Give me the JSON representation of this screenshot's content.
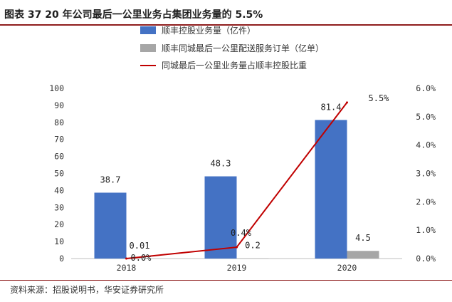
{
  "figure": {
    "title": "图表 37 20 年公司最后一公里业务占集团业务量的 5.5%",
    "source": "资料来源：招股说明书，华安证券研究所"
  },
  "colors": {
    "bar_primary": "#4472c4",
    "bar_secondary": "#a6a6a6",
    "line": "#c00000",
    "rule": "#8f1d1d"
  },
  "chart_data": {
    "type": "bar",
    "categories": [
      "2018",
      "2019",
      "2020"
    ],
    "series": [
      {
        "name": "顺丰控股业务量（亿件）",
        "type": "bar",
        "axis": "left",
        "values": [
          38.7,
          48.3,
          81.4
        ],
        "labels": [
          "38.7",
          "48.3",
          "81.4"
        ]
      },
      {
        "name": "顺丰同城最后一公里配送服务订单（亿单）",
        "type": "bar",
        "axis": "left",
        "values": [
          0.01,
          0.2,
          4.5
        ],
        "labels": [
          "0.01",
          "0.2",
          "4.5"
        ]
      },
      {
        "name": "同城最后一公里业务量占顺丰控股比重",
        "type": "line",
        "axis": "right",
        "values": [
          0.0,
          0.4,
          5.5
        ],
        "labels": [
          "0.0%",
          "0.4%",
          "5.5%"
        ]
      }
    ],
    "ylim": [
      0,
      100
    ],
    "yticks": [
      "0",
      "10",
      "20",
      "30",
      "40",
      "50",
      "60",
      "70",
      "80",
      "90",
      "100"
    ],
    "y2lim": [
      0,
      6
    ],
    "y2ticks": [
      "0.0%",
      "1.0%",
      "2.0%",
      "3.0%",
      "4.0%",
      "5.0%",
      "6.0%"
    ],
    "legend": "top",
    "grid": false
  }
}
